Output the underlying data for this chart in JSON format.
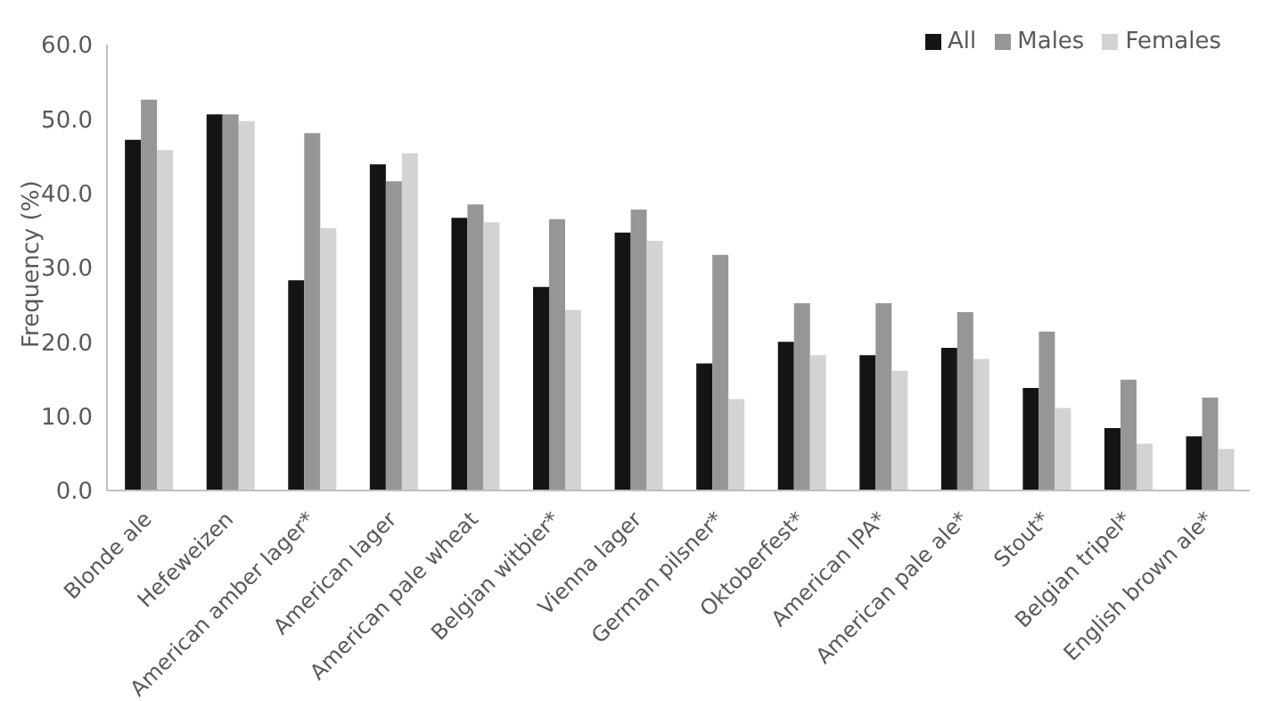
{
  "chart_data": {
    "type": "bar",
    "ylabel": "Frequency (%)",
    "categories": [
      "Blonde ale",
      "Hefeweizen",
      "American amber lager*",
      "American lager",
      "American pale wheat",
      "Belgian witbier*",
      "Vienna lager",
      "German pilsner*",
      "Oktoberfest*",
      "American IPA*",
      "American pale ale*",
      "Stout*",
      "Belgian tripel*",
      "English brown ale*"
    ],
    "series": [
      {
        "name": "All",
        "color": "#141414",
        "values": [
          47.2,
          50.6,
          28.3,
          43.9,
          36.7,
          27.4,
          34.7,
          17.1,
          20.0,
          18.2,
          19.2,
          13.8,
          8.4,
          7.3
        ]
      },
      {
        "name": "Males",
        "color": "#969696",
        "values": [
          52.6,
          50.6,
          48.1,
          41.6,
          38.5,
          36.5,
          37.8,
          31.7,
          25.2,
          25.2,
          24.0,
          21.4,
          14.9,
          12.5
        ]
      },
      {
        "name": "Females",
        "color": "#d3d3d3",
        "values": [
          45.8,
          49.7,
          35.3,
          45.4,
          36.1,
          24.3,
          33.6,
          12.3,
          18.2,
          16.1,
          17.7,
          11.1,
          6.3,
          5.6
        ]
      }
    ],
    "ylim": [
      0,
      60
    ],
    "yticks": [
      {
        "value": 0,
        "label": "0.0"
      },
      {
        "value": 10,
        "label": "10.0"
      },
      {
        "value": 20,
        "label": "20.0"
      },
      {
        "value": 30,
        "label": "30.0"
      },
      {
        "value": 40,
        "label": "40.0"
      },
      {
        "value": 50,
        "label": "50.0"
      },
      {
        "value": 60,
        "label": "60.0"
      }
    ],
    "grid": false,
    "legend": "top right"
  }
}
